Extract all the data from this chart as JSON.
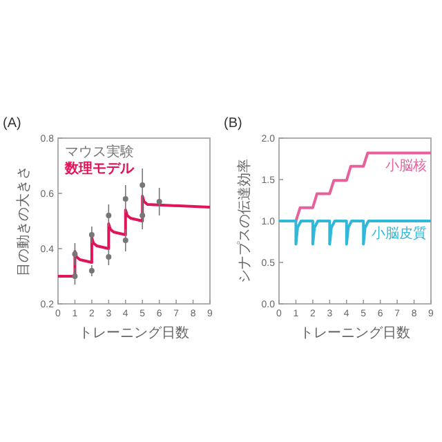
{
  "chart_data": [
    {
      "type": "line",
      "title": "(A)",
      "xlabel": "トレーニング日数",
      "ylabel": "目の動きの大きさ",
      "xlim": [
        0,
        9
      ],
      "xticks": [
        0,
        1,
        2,
        3,
        4,
        5,
        6,
        7,
        8,
        9
      ],
      "ylim": [
        0.2,
        0.8
      ],
      "yticks": [
        0.2,
        0.4,
        0.6,
        0.8
      ],
      "legend": "top left",
      "series": [
        {
          "name": "マウス実験",
          "type": "scatter",
          "color": "#777777",
          "x": [
            1,
            1,
            2,
            2,
            3,
            3,
            4,
            4,
            5,
            5,
            6
          ],
          "values": [
            0.3,
            0.38,
            0.32,
            0.45,
            0.37,
            0.52,
            0.43,
            0.58,
            0.52,
            0.63,
            0.57
          ],
          "errors": [
            0.03,
            0.04,
            0.02,
            0.03,
            0.03,
            0.04,
            0.04,
            0.05,
            0.05,
            0.06,
            0.05
          ]
        },
        {
          "name": "数理モデル",
          "color": "#e0145a",
          "x": [
            0,
            1,
            1,
            1.1,
            1.3,
            2,
            2,
            2.1,
            2.3,
            3,
            3,
            3.1,
            3.3,
            4,
            4,
            4.1,
            4.3,
            5,
            5,
            5.1,
            5.3,
            9
          ],
          "values": [
            0.3,
            0.3,
            0.39,
            0.37,
            0.36,
            0.35,
            0.44,
            0.42,
            0.41,
            0.4,
            0.49,
            0.47,
            0.46,
            0.45,
            0.54,
            0.52,
            0.51,
            0.5,
            0.59,
            0.57,
            0.56,
            0.55
          ]
        }
      ]
    },
    {
      "type": "line",
      "title": "(B)",
      "xlabel": "トレーニング日数",
      "ylabel": "シナプスの伝達効率",
      "xlim": [
        0,
        9
      ],
      "xticks": [
        0,
        1,
        2,
        3,
        4,
        5,
        6,
        7,
        8,
        9
      ],
      "ylim": [
        0,
        2
      ],
      "yticks": [
        {
          "value": 0,
          "label": "0.0"
        },
        {
          "value": 0.5,
          "label": "0.5"
        },
        {
          "value": 1,
          "label": "1.0"
        },
        {
          "value": 1.5,
          "label": "1.5"
        },
        {
          "value": 2,
          "label": "2.0"
        }
      ],
      "series": [
        {
          "name": "小脳核",
          "color": "#e8609a",
          "x": [
            0,
            1,
            1.25,
            2,
            2.25,
            3,
            3.25,
            4,
            4.25,
            5,
            5.25,
            9
          ],
          "values": [
            1.0,
            1.0,
            1.16,
            1.16,
            1.33,
            1.33,
            1.49,
            1.49,
            1.66,
            1.66,
            1.82,
            1.82
          ]
        },
        {
          "name": "小脳皮質",
          "color": "#30b8d8",
          "x": [
            0,
            1,
            1,
            1.1,
            1.3,
            2,
            2,
            2.1,
            2.3,
            3,
            3,
            3.1,
            3.3,
            4,
            4,
            4.1,
            4.3,
            5,
            5,
            5.1,
            5.3,
            9
          ],
          "values": [
            1.0,
            1.0,
            0.72,
            0.92,
            1.0,
            1.0,
            0.72,
            0.92,
            1.0,
            1.0,
            0.72,
            0.92,
            1.0,
            1.0,
            0.72,
            0.92,
            1.0,
            1.0,
            0.72,
            0.92,
            1.0,
            1.0
          ]
        }
      ]
    }
  ]
}
